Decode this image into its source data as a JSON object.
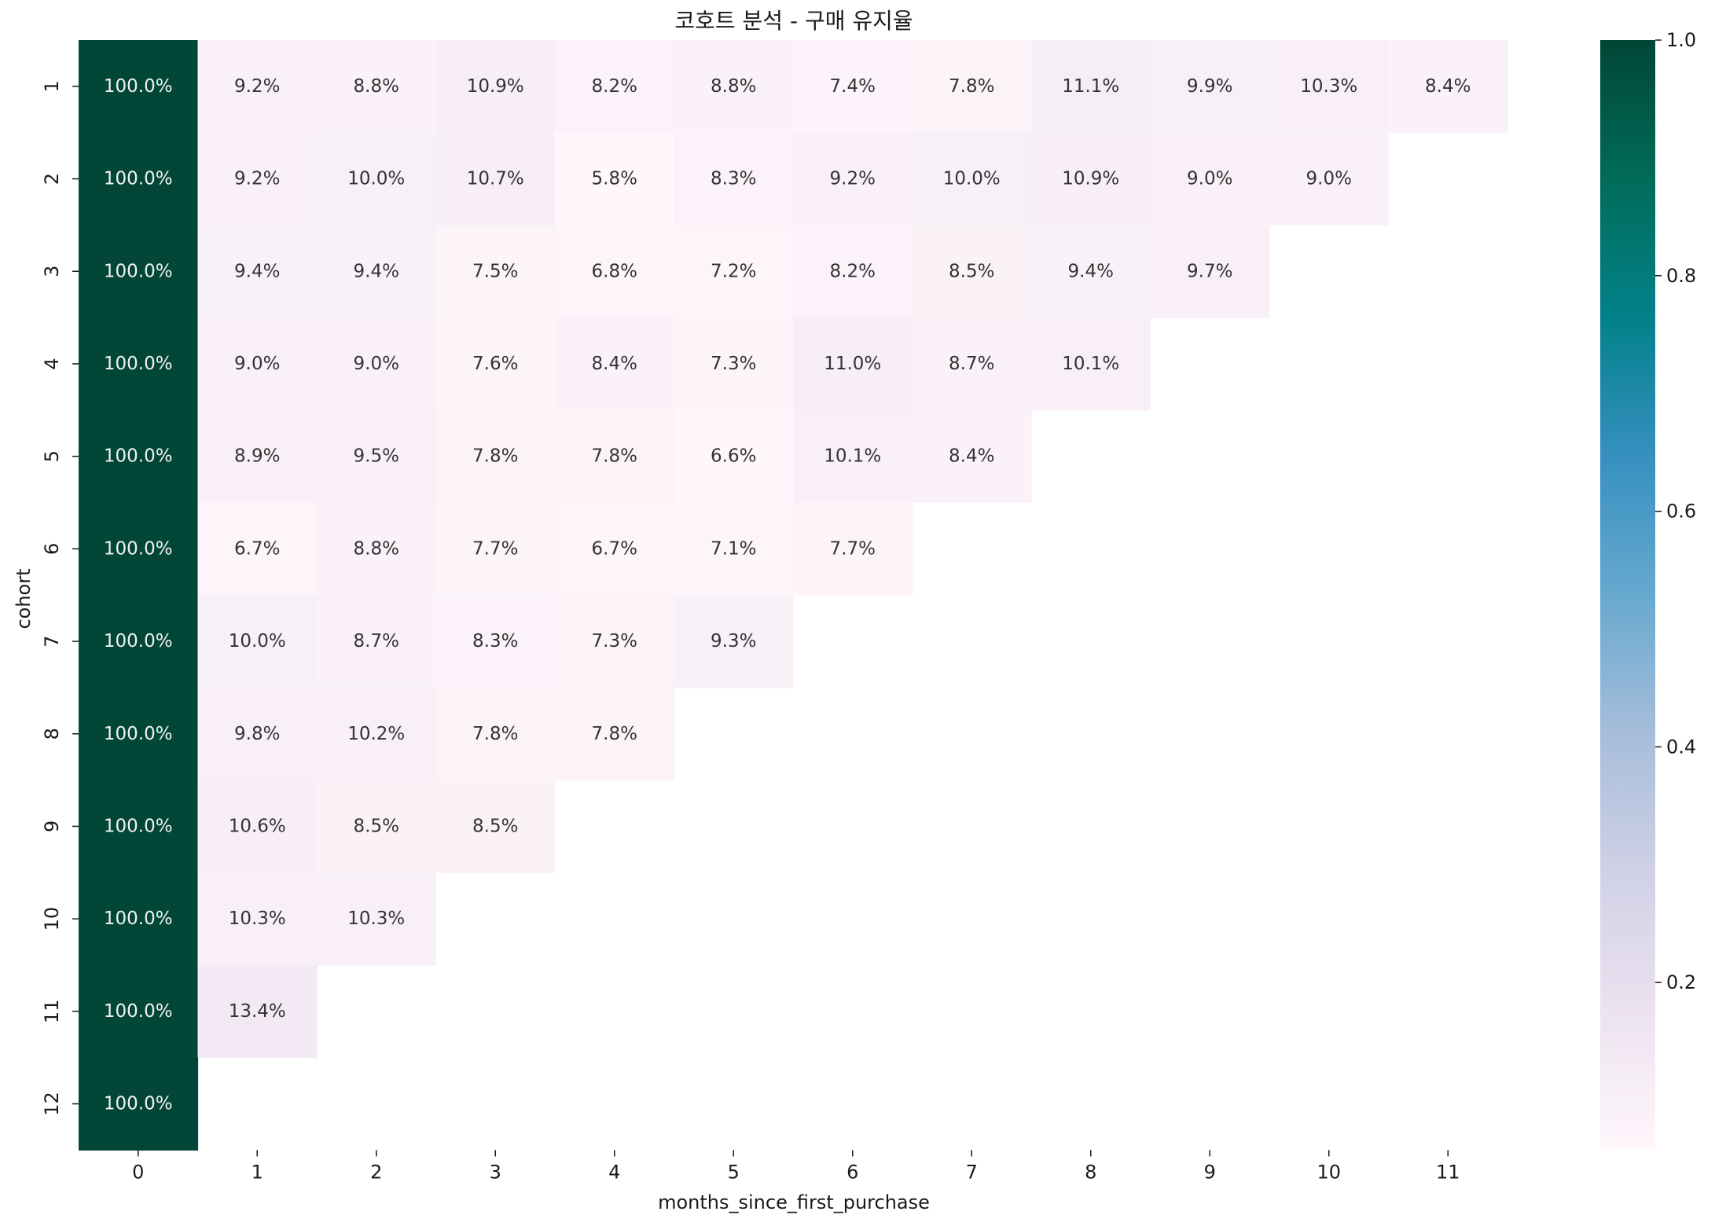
{
  "chart_data": {
    "type": "heatmap",
    "title": "코호트 분석 - 구매 유지율",
    "xlabel": "months_since_first_purchase",
    "ylabel": "cohort",
    "x_categories": [
      "0",
      "1",
      "2",
      "3",
      "4",
      "5",
      "6",
      "7",
      "8",
      "9",
      "10",
      "11"
    ],
    "y_categories": [
      "1",
      "2",
      "3",
      "4",
      "5",
      "6",
      "7",
      "8",
      "9",
      "10",
      "11",
      "12"
    ],
    "values": [
      [
        1.0,
        0.092,
        0.088,
        0.109,
        0.082,
        0.088,
        0.074,
        0.078,
        0.111,
        0.099,
        0.103,
        0.084
      ],
      [
        1.0,
        0.092,
        0.1,
        0.107,
        0.058,
        0.083,
        0.092,
        0.1,
        0.109,
        0.09,
        0.09,
        null
      ],
      [
        1.0,
        0.094,
        0.094,
        0.075,
        0.068,
        0.072,
        0.082,
        0.085,
        0.094,
        0.097,
        null,
        null
      ],
      [
        1.0,
        0.09,
        0.09,
        0.076,
        0.084,
        0.073,
        0.11,
        0.087,
        0.101,
        null,
        null,
        null
      ],
      [
        1.0,
        0.089,
        0.095,
        0.078,
        0.078,
        0.066,
        0.101,
        0.084,
        null,
        null,
        null,
        null
      ],
      [
        1.0,
        0.067,
        0.088,
        0.077,
        0.067,
        0.071,
        0.077,
        null,
        null,
        null,
        null,
        null
      ],
      [
        1.0,
        0.1,
        0.087,
        0.083,
        0.073,
        0.093,
        null,
        null,
        null,
        null,
        null,
        null
      ],
      [
        1.0,
        0.098,
        0.102,
        0.078,
        0.078,
        null,
        null,
        null,
        null,
        null,
        null,
        null
      ],
      [
        1.0,
        0.106,
        0.085,
        0.085,
        null,
        null,
        null,
        null,
        null,
        null,
        null,
        null
      ],
      [
        1.0,
        0.103,
        0.103,
        null,
        null,
        null,
        null,
        null,
        null,
        null,
        null,
        null
      ],
      [
        1.0,
        0.134,
        null,
        null,
        null,
        null,
        null,
        null,
        null,
        null,
        null,
        null
      ],
      [
        1.0,
        null,
        null,
        null,
        null,
        null,
        null,
        null,
        null,
        null,
        null,
        null
      ]
    ],
    "labels": [
      [
        "100.0%",
        "9.2%",
        "8.8%",
        "10.9%",
        "8.2%",
        "8.8%",
        "7.4%",
        "7.8%",
        "11.1%",
        "9.9%",
        "10.3%",
        "8.4%"
      ],
      [
        "100.0%",
        "9.2%",
        "10.0%",
        "10.7%",
        "5.8%",
        "8.3%",
        "9.2%",
        "10.0%",
        "10.9%",
        "9.0%",
        "9.0%",
        null
      ],
      [
        "100.0%",
        "9.4%",
        "9.4%",
        "7.5%",
        "6.8%",
        "7.2%",
        "8.2%",
        "8.5%",
        "9.4%",
        "9.7%",
        null,
        null
      ],
      [
        "100.0%",
        "9.0%",
        "9.0%",
        "7.6%",
        "8.4%",
        "7.3%",
        "11.0%",
        "8.7%",
        "10.1%",
        null,
        null,
        null
      ],
      [
        "100.0%",
        "8.9%",
        "9.5%",
        "7.8%",
        "7.8%",
        "6.6%",
        "10.1%",
        "8.4%",
        null,
        null,
        null,
        null
      ],
      [
        "100.0%",
        "6.7%",
        "8.8%",
        "7.7%",
        "6.7%",
        "7.1%",
        "7.7%",
        null,
        null,
        null,
        null,
        null
      ],
      [
        "100.0%",
        "10.0%",
        "8.7%",
        "8.3%",
        "7.3%",
        "9.3%",
        null,
        null,
        null,
        null,
        null,
        null
      ],
      [
        "100.0%",
        "9.8%",
        "10.2%",
        "7.8%",
        "7.8%",
        null,
        null,
        null,
        null,
        null,
        null,
        null
      ],
      [
        "100.0%",
        "10.6%",
        "8.5%",
        "8.5%",
        null,
        null,
        null,
        null,
        null,
        null,
        null,
        null
      ],
      [
        "100.0%",
        "10.3%",
        "10.3%",
        null,
        null,
        null,
        null,
        null,
        null,
        null,
        null,
        null
      ],
      [
        "100.0%",
        "13.4%",
        null,
        null,
        null,
        null,
        null,
        null,
        null,
        null,
        null,
        null
      ],
      [
        "100.0%",
        null,
        null,
        null,
        null,
        null,
        null,
        null,
        null,
        null,
        null,
        null
      ]
    ],
    "colormap": "PuBuGn",
    "vmin": 0.058,
    "vmax": 1.0,
    "colorbar": {
      "ticks": [
        0.2,
        0.4,
        0.6,
        0.8,
        1.0
      ],
      "tick_labels": [
        "0.2",
        "0.4",
        "0.6",
        "0.8",
        "1.0"
      ],
      "placement": "right"
    },
    "colors": {
      "colormap_stops": [
        "#fff7fb",
        "#ece2f0",
        "#d0d1e6",
        "#a6bddb",
        "#67a9cf",
        "#3690c0",
        "#02818a",
        "#016c59",
        "#014636"
      ],
      "label_light": "#f2f2f2",
      "label_dark": "#333333"
    },
    "grid": false
  }
}
